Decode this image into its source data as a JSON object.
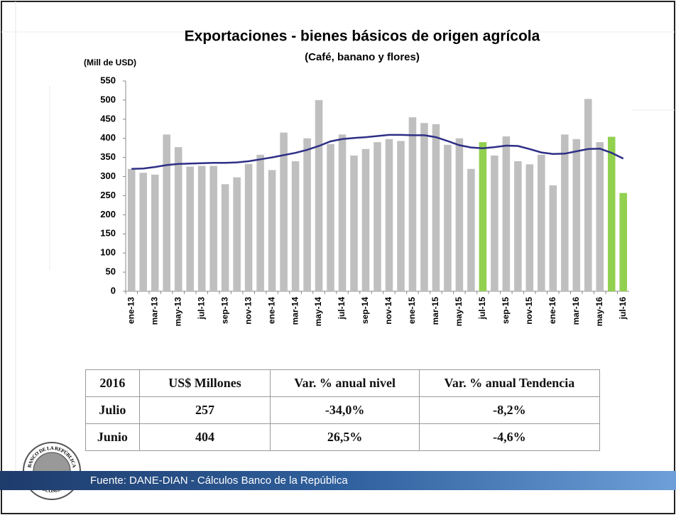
{
  "chart_data": {
    "type": "bar",
    "title": "Exportaciones - bienes básicos de origen agrícola",
    "subtitle": "(Café, banano y flores)",
    "y_label": "(Mill de USD)",
    "categories": [
      "ene-13",
      null,
      "mar-13",
      null,
      "may-13",
      null,
      "jul-13",
      null,
      "sep-13",
      null,
      "nov-13",
      null,
      "ene-14",
      null,
      "mar-14",
      null,
      "may-14",
      null,
      "jul-14",
      null,
      "sep-14",
      null,
      "nov-14",
      null,
      "ene-15",
      null,
      "mar-15",
      null,
      "may-15",
      null,
      "jul-15",
      null,
      "sep-15",
      null,
      "nov-15",
      null,
      "ene-16",
      null,
      "mar-16",
      null,
      "may-16",
      null,
      "jul-16"
    ],
    "series": [
      {
        "type": "bar",
        "color": "#bfbfbf",
        "colors": [
          "#bfbfbf",
          "#bfbfbf",
          "#bfbfbf",
          "#bfbfbf",
          "#bfbfbf",
          "#bfbfbf",
          "#bfbfbf",
          "#bfbfbf",
          "#bfbfbf",
          "#bfbfbf",
          "#bfbfbf",
          "#bfbfbf",
          "#bfbfbf",
          "#bfbfbf",
          "#bfbfbf",
          "#bfbfbf",
          "#bfbfbf",
          "#bfbfbf",
          "#bfbfbf",
          "#bfbfbf",
          "#bfbfbf",
          "#bfbfbf",
          "#bfbfbf",
          "#bfbfbf",
          "#bfbfbf",
          "#bfbfbf",
          "#bfbfbf",
          "#bfbfbf",
          "#bfbfbf",
          "#bfbfbf",
          "#92d050",
          "#bfbfbf",
          "#bfbfbf",
          "#bfbfbf",
          "#bfbfbf",
          "#bfbfbf",
          "#bfbfbf",
          "#bfbfbf",
          "#bfbfbf",
          "#bfbfbf",
          "#bfbfbf",
          "#92d050",
          "#92d050"
        ],
        "values": [
          320,
          310,
          305,
          410,
          377,
          326,
          328,
          328,
          280,
          298,
          333,
          357,
          317,
          415,
          340,
          400,
          500,
          385,
          410,
          355,
          372,
          390,
          398,
          393,
          455,
          440,
          437,
          383,
          400,
          320,
          390,
          355,
          405,
          340,
          332,
          357,
          277,
          410,
          398,
          503,
          390,
          404,
          257
        ]
      },
      {
        "type": "line",
        "color": "#2e2f86",
        "values": [
          320,
          321,
          325,
          330,
          333,
          334,
          335,
          336,
          336,
          337,
          340,
          345,
          350,
          356,
          362,
          370,
          380,
          392,
          398,
          401,
          403,
          406,
          409,
          409,
          408,
          408,
          403,
          393,
          382,
          376,
          374,
          377,
          381,
          380,
          372,
          363,
          359,
          360,
          366,
          372,
          373,
          362,
          347
        ]
      }
    ],
    "ylim": [
      0,
      550
    ],
    "yticks": [
      0,
      50,
      100,
      150,
      200,
      250,
      300,
      350,
      400,
      450,
      500,
      550
    ]
  },
  "table": {
    "header": [
      "2016",
      "US$ Millones",
      "Var. % anual nivel",
      "Var. % anual Tendencia"
    ],
    "rows": [
      [
        "Julio",
        "257",
        "-34,0%",
        "-8,2%"
      ],
      [
        "Junio",
        "404",
        "26,5%",
        "-4,6%"
      ]
    ]
  },
  "logo": {
    "top": "BANCO DE LA REPÚBLICA",
    "bottom": "COLOMBIA"
  },
  "source": "Fuente: DANE-DIAN - Cálculos Banco de la República"
}
